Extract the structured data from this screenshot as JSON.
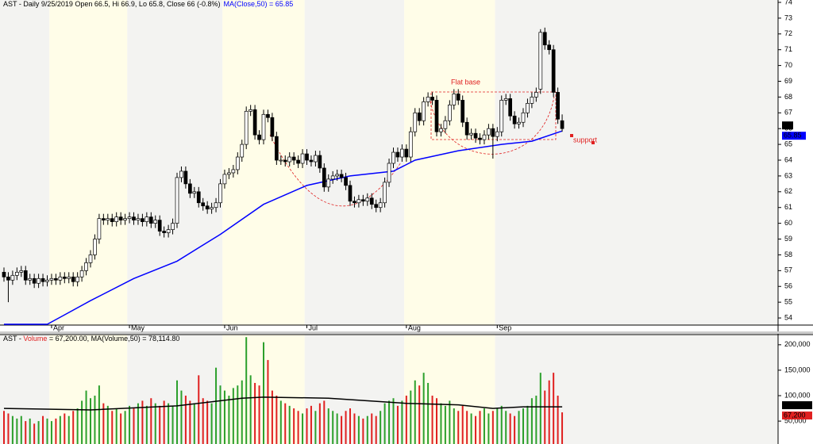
{
  "chart_data": [
    {
      "type": "candlestick",
      "title": [
        {
          "text": "AST - Daily 9/25/2019 Open 66.5, Hi 66.9, Lo 65.8, Close 66 (-0.8%)",
          "color": "#000000"
        },
        {
          "text": "MA(Close,50) = 65.85",
          "color": "#0000ff"
        }
      ],
      "categories": [
        null,
        null,
        null,
        null,
        null,
        null,
        null,
        null,
        null,
        null,
        null,
        "Apr",
        null,
        null,
        null,
        null,
        null,
        null,
        null,
        null,
        null,
        null,
        null,
        null,
        null,
        null,
        null,
        null,
        null,
        "May",
        null,
        null,
        null,
        null,
        null,
        null,
        null,
        null,
        null,
        null,
        null,
        null,
        null,
        null,
        null,
        null,
        null,
        null,
        null,
        null,
        null,
        "Jun",
        null,
        null,
        null,
        null,
        null,
        null,
        null,
        null,
        null,
        null,
        null,
        null,
        null,
        null,
        null,
        null,
        null,
        null,
        "Jul",
        null,
        null,
        null,
        null,
        null,
        null,
        null,
        null,
        null,
        null,
        null,
        null,
        null,
        null,
        null,
        null,
        null,
        null,
        null,
        null,
        null,
        null,
        "Aug",
        null,
        null,
        null,
        null,
        null,
        null,
        null,
        null,
        null,
        null,
        null,
        null,
        null,
        null,
        null,
        null,
        null,
        null,
        null,
        null,
        "Sep",
        null,
        null,
        null,
        null,
        null,
        null,
        null,
        null,
        null,
        null,
        null,
        null,
        null,
        null,
        null
      ],
      "open": [
        56.9,
        56.6,
        56.4,
        56.7,
        56.9,
        57.0,
        56.4,
        56.5,
        56.2,
        56.5,
        56.3,
        56.4,
        56.5,
        56.4,
        56.6,
        56.5,
        56.6,
        56.3,
        56.6,
        57.0,
        57.5,
        58.0,
        59.0,
        60.3,
        60.2,
        60.3,
        60.1,
        60.4,
        60.2,
        60.3,
        60.4,
        60.2,
        60.3,
        60.1,
        60.4,
        60.0,
        60.2,
        59.5,
        59.4,
        59.6,
        60.0,
        62.9,
        63.3,
        62.5,
        61.9,
        62.0,
        61.3,
        61.1,
        60.9,
        61.0,
        61.3,
        62.5,
        63.1,
        63.2,
        63.4,
        64.2,
        65.0,
        67.1,
        67.2,
        65.6,
        65.3,
        66.9,
        66.7,
        65.5,
        64.0,
        64.0,
        63.9,
        64.2,
        64.0,
        63.8,
        64.4,
        64.0,
        63.9,
        64.3,
        63.5,
        62.3,
        62.8,
        63.0,
        63.1,
        62.9,
        62.4,
        61.4,
        61.3,
        61.5,
        61.4,
        61.6,
        61.2,
        61.0,
        61.3,
        62.6,
        63.8,
        64.5,
        64.2,
        64.7,
        64.2,
        65.8,
        67.0,
        66.5,
        67.7,
        68.0,
        67.8,
        65.8,
        66.0,
        66.5,
        67.5,
        68.2,
        67.8,
        66.4,
        65.6,
        65.7,
        65.4,
        65.3,
        65.6,
        66.0,
        65.5,
        65.8,
        67.8,
        67.9,
        66.8,
        66.3,
        66.4,
        67.0,
        67.6,
        68.0,
        68.5,
        72.1,
        71.3,
        71.0,
        68.3,
        66.5
      ],
      "high": [
        57.2,
        56.9,
        57.0,
        57.2,
        57.3,
        57.3,
        56.8,
        56.8,
        56.8,
        56.8,
        56.7,
        56.8,
        56.8,
        56.9,
        56.9,
        56.9,
        56.9,
        56.9,
        57.3,
        57.8,
        58.3,
        59.3,
        60.6,
        60.6,
        60.6,
        60.6,
        60.7,
        60.7,
        60.6,
        60.7,
        60.7,
        60.6,
        60.6,
        60.7,
        60.7,
        60.5,
        60.5,
        59.8,
        59.9,
        60.3,
        63.2,
        63.6,
        63.6,
        62.8,
        62.3,
        62.3,
        61.6,
        61.4,
        61.3,
        61.6,
        62.8,
        63.4,
        63.5,
        63.7,
        64.5,
        65.3,
        67.4,
        67.5,
        67.5,
        65.9,
        67.2,
        67.2,
        67.0,
        65.8,
        64.3,
        64.3,
        64.5,
        64.5,
        64.3,
        64.7,
        64.7,
        64.3,
        64.6,
        64.6,
        63.8,
        63.1,
        63.3,
        63.4,
        63.4,
        63.2,
        62.7,
        61.7,
        61.8,
        61.8,
        61.9,
        61.9,
        61.5,
        61.6,
        62.9,
        64.1,
        64.8,
        64.8,
        65.0,
        65.0,
        66.1,
        67.3,
        67.3,
        68.0,
        68.3,
        68.3,
        68.1,
        66.3,
        66.8,
        67.8,
        68.5,
        68.5,
        68.1,
        66.7,
        66.0,
        66.0,
        65.7,
        65.9,
        66.3,
        66.3,
        66.1,
        68.1,
        68.2,
        68.2,
        67.1,
        66.7,
        67.3,
        67.9,
        68.3,
        68.6,
        72.3,
        72.4,
        71.6,
        71.3,
        68.6,
        66.9
      ],
      "low": [
        56.3,
        55.0,
        56.1,
        56.4,
        56.6,
        56.1,
        56.1,
        55.9,
        55.9,
        56.0,
        56.0,
        56.1,
        56.1,
        56.1,
        56.2,
        56.2,
        56.0,
        56.0,
        56.3,
        56.7,
        57.2,
        57.7,
        58.7,
        59.9,
        59.9,
        59.8,
        59.8,
        59.9,
        59.9,
        60.0,
        59.9,
        59.9,
        59.8,
        59.8,
        59.7,
        59.7,
        59.2,
        59.1,
        59.1,
        59.3,
        59.7,
        62.6,
        62.2,
        61.6,
        61.6,
        61.0,
        60.8,
        60.6,
        60.6,
        60.7,
        61.0,
        62.2,
        62.8,
        62.9,
        63.1,
        63.9,
        64.7,
        66.8,
        65.3,
        65.0,
        65.0,
        66.4,
        65.2,
        63.7,
        63.7,
        63.6,
        63.6,
        63.7,
        63.5,
        63.5,
        63.7,
        63.6,
        63.6,
        63.2,
        62.0,
        62.0,
        62.5,
        62.7,
        62.6,
        62.1,
        61.1,
        61.0,
        61.0,
        61.1,
        61.1,
        60.9,
        60.7,
        60.7,
        61.0,
        62.3,
        63.5,
        63.9,
        63.9,
        63.9,
        63.9,
        65.5,
        66.2,
        66.2,
        67.4,
        67.5,
        65.5,
        65.5,
        65.7,
        66.2,
        67.2,
        67.5,
        66.1,
        65.3,
        65.3,
        65.1,
        65.0,
        65.0,
        65.3,
        64.1,
        65.2,
        65.5,
        67.5,
        66.5,
        66.0,
        66.0,
        66.1,
        66.7,
        67.3,
        67.7,
        68.2,
        71.0,
        70.7,
        68.0,
        66.3,
        65.8
      ],
      "close": [
        56.6,
        56.4,
        56.7,
        56.9,
        57.0,
        56.4,
        56.5,
        56.2,
        56.5,
        56.3,
        56.4,
        56.5,
        56.4,
        56.6,
        56.5,
        56.6,
        56.3,
        56.6,
        57.0,
        57.5,
        58.0,
        59.0,
        60.3,
        60.2,
        60.3,
        60.1,
        60.4,
        60.2,
        60.3,
        60.4,
        60.2,
        60.3,
        60.1,
        60.4,
        60.0,
        60.2,
        59.5,
        59.4,
        59.6,
        60.0,
        62.9,
        63.3,
        62.5,
        61.9,
        62.0,
        61.3,
        61.1,
        60.9,
        61.0,
        61.3,
        62.5,
        63.1,
        63.2,
        63.4,
        64.2,
        65.0,
        67.1,
        67.2,
        65.6,
        65.3,
        66.9,
        66.7,
        65.5,
        64.0,
        64.0,
        63.9,
        64.2,
        64.0,
        63.8,
        64.4,
        64.0,
        63.9,
        64.3,
        63.5,
        62.3,
        62.8,
        63.0,
        63.1,
        62.9,
        62.4,
        61.4,
        61.3,
        61.5,
        61.4,
        61.6,
        61.2,
        61.0,
        61.3,
        62.6,
        63.8,
        64.5,
        64.2,
        64.7,
        64.2,
        65.8,
        67.0,
        66.5,
        67.7,
        68.0,
        67.8,
        65.8,
        66.0,
        66.5,
        67.5,
        68.2,
        67.8,
        66.4,
        65.6,
        65.7,
        65.4,
        65.3,
        65.6,
        66.0,
        65.5,
        65.8,
        67.8,
        67.9,
        66.8,
        66.3,
        66.4,
        67.0,
        67.6,
        68.0,
        68.3,
        72.1,
        71.3,
        71.0,
        68.3,
        66.6,
        66.0
      ],
      "up_color": "#ffffff",
      "down_color": "#000000",
      "ma": {
        "color": "#0000ff",
        "x": [
          0,
          10,
          14,
          20,
          30,
          40,
          50,
          60,
          70,
          80,
          90,
          95,
          105,
          115,
          122,
          129
        ],
        "values": [
          53.6,
          53.6,
          54.2,
          55.1,
          56.5,
          57.6,
          59.3,
          61.2,
          62.4,
          63.0,
          63.3,
          64.0,
          64.6,
          65.0,
          65.2,
          65.85
        ]
      },
      "annotations": [
        "Flat base",
        "support"
      ],
      "tags": [
        {
          "value": 66,
          "label": "66",
          "color": "#000000"
        },
        {
          "value": 65.85,
          "label": "65.85",
          "color": "#0000ff"
        }
      ],
      "ylim": [
        53.55,
        74.15
      ],
      "yticks": [
        54,
        55,
        56,
        57,
        58,
        59,
        60,
        61,
        62,
        63,
        64,
        65,
        66,
        67,
        68,
        69,
        70,
        71,
        72,
        73,
        74
      ]
    },
    {
      "type": "volume",
      "title": [
        {
          "text": "AST - ",
          "color": "#000000"
        },
        {
          "text": "Volume",
          "color": "#e02020"
        },
        {
          "text": " = 67,200.00, ",
          "color": "#000000"
        },
        {
          "text": "MA(Volume,50) = 78,114.80",
          "color": "#000000"
        }
      ],
      "values": [
        70000,
        65000,
        60000,
        55000,
        60000,
        50000,
        55000,
        45000,
        50000,
        60000,
        55000,
        50000,
        55000,
        60000,
        65000,
        60000,
        70000,
        75000,
        90000,
        110000,
        95000,
        100000,
        120000,
        85000,
        80000,
        70000,
        75000,
        65000,
        70000,
        80000,
        75000,
        85000,
        90000,
        80000,
        95000,
        85000,
        80000,
        90000,
        85000,
        80000,
        130000,
        110000,
        100000,
        90000,
        85000,
        140000,
        95000,
        90000,
        85000,
        155000,
        120000,
        110000,
        100000,
        115000,
        120000,
        130000,
        215000,
        140000,
        125000,
        120000,
        205000,
        170000,
        110000,
        100000,
        90000,
        85000,
        80000,
        75000,
        70000,
        65000,
        75000,
        80000,
        70000,
        85000,
        90000,
        75000,
        70000,
        65000,
        60000,
        70000,
        75000,
        65000,
        60000,
        55000,
        60000,
        65000,
        60000,
        70000,
        85000,
        90000,
        95000,
        80000,
        90000,
        100000,
        110000,
        130000,
        120000,
        145000,
        125000,
        100000,
        95000,
        85000,
        80000,
        90000,
        75000,
        70000,
        80000,
        70000,
        65000,
        60000,
        70000,
        75000,
        65000,
        70000,
        75000,
        80000,
        70000,
        65000,
        60000,
        70000,
        75000,
        80000,
        95000,
        100000,
        145000,
        110000,
        130000,
        145000,
        100000,
        67200
      ],
      "up_color": "#2ca02c",
      "down_color": "#e02020",
      "ma": {
        "color": "#000000",
        "x": [
          0,
          20,
          40,
          55,
          60,
          75,
          93,
          105,
          113,
          120,
          129
        ],
        "values": [
          75000,
          72000,
          80000,
          95000,
          97000,
          95000,
          85000,
          82000,
          75000,
          78000,
          78114.8
        ]
      },
      "tags": [
        {
          "value": 78114.8,
          "label": "78,114.8",
          "color": "#000000"
        },
        {
          "value": 67200,
          "label": "67,200",
          "color": "#e02020"
        }
      ],
      "ylim": [
        5000,
        220000
      ],
      "yticks": [
        {
          "value": 50000,
          "label": "50,000"
        },
        {
          "value": 100000,
          "label": "100,000"
        },
        {
          "value": 150000,
          "label": "150,000"
        },
        {
          "value": 200000,
          "label": "200,000"
        }
      ]
    }
  ]
}
